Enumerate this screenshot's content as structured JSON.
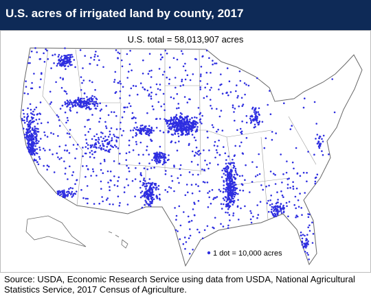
{
  "header": {
    "title": "U.S. acres of irrigated land by county, 2017",
    "subtitle": "U.S. total = 58,013,907 acres"
  },
  "legend": {
    "text": "1 dot = 10,000 acres"
  },
  "footer": {
    "source": "Source: USDA, Economic Research Service using data from USDA, National Agricultural Statistics Service, 2017 Census of Agriculture."
  }
}
